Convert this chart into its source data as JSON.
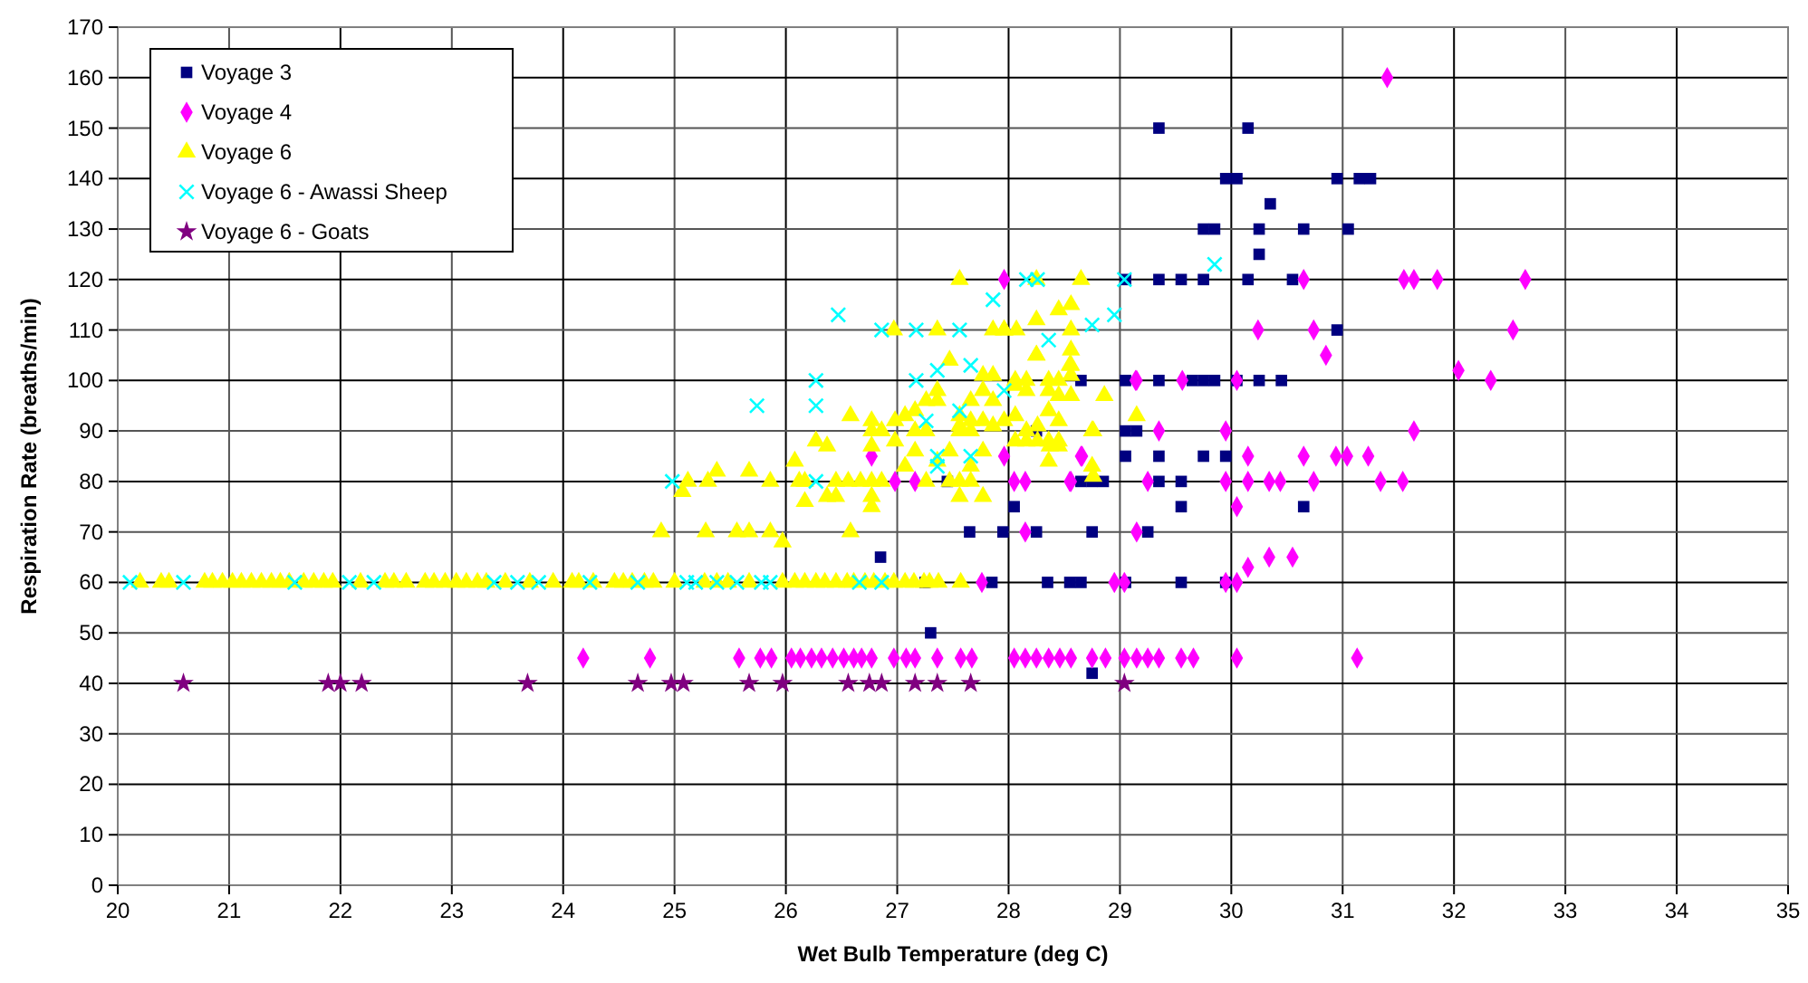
{
  "chart_data": {
    "type": "scatter",
    "xlabel": "Wet Bulb Temperature (deg C)",
    "ylabel": "Respiration Rate (breaths/min)",
    "xlim": [
      20,
      35
    ],
    "xticks": [
      20,
      21,
      22,
      23,
      24,
      25,
      26,
      27,
      28,
      29,
      30,
      31,
      32,
      33,
      34,
      35
    ],
    "ylim": [
      0,
      170
    ],
    "yticks": [
      0,
      10,
      20,
      30,
      40,
      50,
      60,
      70,
      80,
      90,
      100,
      110,
      120,
      130,
      140,
      150,
      160,
      170
    ],
    "grid": true,
    "legend": "top left",
    "series": [
      {
        "name": "Voyage 3",
        "color": "#000080",
        "marker": "square",
        "x": [
          27.3,
          28.75,
          26.85,
          27.25,
          27.85,
          28.35,
          28.55,
          28.65,
          29.05,
          29.55,
          29.95,
          27.65,
          27.95,
          28.25,
          28.75,
          29.25,
          28.05,
          29.55,
          30.65,
          27.45,
          28.65,
          28.75,
          28.85,
          29.35,
          29.55,
          29.05,
          29.35,
          29.75,
          29.95,
          28.25,
          29.05,
          29.15,
          28.65,
          29.05,
          29.35,
          29.65,
          29.75,
          29.85,
          30.05,
          30.25,
          30.45,
          30.95,
          29.05,
          29.35,
          29.55,
          29.75,
          30.15,
          30.55,
          30.25,
          29.75,
          29.85,
          30.25,
          30.65,
          31.05,
          30.35,
          29.95,
          30.05,
          30.95,
          31.15,
          31.25,
          29.35,
          30.15
        ],
        "values": [
          50,
          42,
          65,
          60,
          60,
          60,
          60,
          60,
          60,
          60,
          60,
          70,
          70,
          70,
          70,
          70,
          75,
          75,
          75,
          80,
          80,
          80,
          80,
          80,
          80,
          85,
          85,
          85,
          85,
          90,
          90,
          90,
          100,
          100,
          100,
          100,
          100,
          100,
          100,
          100,
          100,
          110,
          120,
          120,
          120,
          120,
          120,
          120,
          125,
          130,
          130,
          130,
          130,
          130,
          135,
          140,
          140,
          140,
          140,
          140,
          150,
          150
        ]
      },
      {
        "name": "Voyage 4",
        "color": "#ff00ff",
        "marker": "diamond",
        "x": [
          24.18,
          24.78,
          25.58,
          25.77,
          25.87,
          26.05,
          26.13,
          26.23,
          26.32,
          26.42,
          26.52,
          26.61,
          26.68,
          26.77,
          26.97,
          27.08,
          27.16,
          27.36,
          27.57,
          27.67,
          28.05,
          28.15,
          28.25,
          28.36,
          28.46,
          28.56,
          28.75,
          28.87,
          29.04,
          29.15,
          29.25,
          29.35,
          29.55,
          29.66,
          30.05,
          31.13,
          27.76,
          28.95,
          29.04,
          29.95,
          30.05,
          30.15,
          30.34,
          30.55,
          28.15,
          29.15,
          30.05,
          26.98,
          27.16,
          28.05,
          28.15,
          28.56,
          28.55,
          29.25,
          29.95,
          30.15,
          30.34,
          30.44,
          30.74,
          31.34,
          31.54,
          26.77,
          27.96,
          28.66,
          28.65,
          30.15,
          30.65,
          30.94,
          31.04,
          31.23,
          29.35,
          29.95,
          31.64,
          29.15,
          29.56,
          29.14,
          30.05,
          32.33,
          32.04,
          30.85,
          30.24,
          30.74,
          32.53,
          27.96,
          30.65,
          31.55,
          31.64,
          31.85,
          32.64,
          31.4
        ],
        "values": [
          45,
          45,
          45,
          45,
          45,
          45,
          45,
          45,
          45,
          45,
          45,
          45,
          45,
          45,
          45,
          45,
          45,
          45,
          45,
          45,
          45,
          45,
          45,
          45,
          45,
          45,
          45,
          45,
          45,
          45,
          45,
          45,
          45,
          45,
          45,
          45,
          60,
          60,
          60,
          60,
          60,
          63,
          65,
          65,
          70,
          70,
          75,
          80,
          80,
          80,
          80,
          80,
          80,
          80,
          80,
          80,
          80,
          80,
          80,
          80,
          80,
          85,
          85,
          85,
          85,
          85,
          85,
          85,
          85,
          85,
          90,
          90,
          90,
          100,
          100,
          100,
          100,
          100,
          102,
          105,
          110,
          110,
          110,
          120,
          120,
          120,
          120,
          120,
          120,
          160
        ]
      },
      {
        "name": "Voyage 6",
        "color": "#ffff00",
        "marker": "triangle",
        "x": [
          20.2,
          20.39,
          20.46,
          20.78,
          20.85,
          20.94,
          21.03,
          21.11,
          21.2,
          21.29,
          21.38,
          21.46,
          21.54,
          21.67,
          21.76,
          21.85,
          21.93,
          22.18,
          22.4,
          22.48,
          22.59,
          22.76,
          22.84,
          22.94,
          23.04,
          23.13,
          23.23,
          23.31,
          23.48,
          23.7,
          23.91,
          24.08,
          24.14,
          24.27,
          24.46,
          24.54,
          24.62,
          24.73,
          24.81,
          25.0,
          25.27,
          25.38,
          25.48,
          25.67,
          25.97,
          26.08,
          26.17,
          26.27,
          26.35,
          26.45,
          26.55,
          26.61,
          26.71,
          26.79,
          26.89,
          26.97,
          27.07,
          27.15,
          27.24,
          27.29,
          27.37,
          27.57,
          24.88,
          25.28,
          25.56,
          25.67,
          25.86,
          25.97,
          26.58,
          25.07,
          25.12,
          25.3,
          25.38,
          25.67,
          25.86,
          26.17,
          26.37,
          26.45,
          26.77,
          26.77,
          27.56,
          27.77,
          26.17,
          26.45,
          26.56,
          26.67,
          26.77,
          26.86,
          27.26,
          27.47,
          27.56,
          27.66,
          28.76,
          28.75,
          26.08,
          27.07,
          27.36,
          27.66,
          28.36,
          26.12,
          27.16,
          27.47,
          27.77,
          26.27,
          26.37,
          26.77,
          26.98,
          28.06,
          28.16,
          28.26,
          28.36,
          28.45,
          28.37,
          28.45,
          26.77,
          26.86,
          27.16,
          27.26,
          27.56,
          27.66,
          28.16,
          28.76,
          28.75,
          28.26,
          26.98,
          26.77,
          27.56,
          27.66,
          27.77,
          27.86,
          27.96,
          28.45,
          26.58,
          27.07,
          27.56,
          28.36,
          28.06,
          29.15,
          27.16,
          27.26,
          27.36,
          27.77,
          27.86,
          28.45,
          27.36,
          27.66,
          28.06,
          28.16,
          28.36,
          28.56,
          28.86,
          28.45,
          28.56,
          27.77,
          27.86,
          28.06,
          28.16,
          28.36,
          28.55,
          28.56,
          27.47,
          28.56,
          28.25,
          28.25,
          26.97,
          27.96,
          28.56,
          27.36,
          27.86,
          27.96,
          28.07,
          28.25,
          28.56,
          28.45,
          28.65,
          28.25,
          27.56
        ],
        "values": [
          60,
          60,
          60,
          60,
          60,
          60,
          60,
          60,
          60,
          60,
          60,
          60,
          60,
          60,
          60,
          60,
          60,
          60,
          60,
          60,
          60,
          60,
          60,
          60,
          60,
          60,
          60,
          60,
          60,
          60,
          60,
          60,
          60,
          60,
          60,
          60,
          60,
          60,
          60,
          60,
          60,
          60,
          60,
          60,
          60,
          60,
          60,
          60,
          60,
          60,
          60,
          60,
          60,
          60,
          60,
          60,
          60,
          60,
          60,
          60,
          60,
          60,
          70,
          70,
          70,
          70,
          70,
          68,
          70,
          78,
          80,
          80,
          82,
          82,
          80,
          76,
          77,
          77,
          77,
          75,
          77,
          77,
          80,
          80,
          80,
          80,
          80,
          80,
          80,
          80,
          80,
          80,
          81,
          83,
          84,
          83,
          84,
          83,
          84,
          80,
          86,
          86,
          86,
          88,
          87,
          87,
          88,
          88,
          88,
          88,
          88,
          88,
          87,
          87,
          90,
          90,
          90,
          90,
          90,
          90,
          90,
          90,
          90,
          91,
          92,
          92,
          91,
          92,
          92,
          91,
          92,
          92,
          93,
          93,
          93,
          94,
          93,
          93,
          94,
          96,
          98,
          98,
          96,
          97,
          96,
          96,
          99,
          98,
          98,
          97,
          97,
          100,
          101,
          101,
          101,
          100,
          100,
          100,
          103,
          103,
          104,
          106,
          105,
          105,
          110,
          110,
          110,
          110,
          110,
          110,
          110,
          112,
          115,
          114,
          120,
          120,
          120
        ]
      },
      {
        "name": "Voyage 6 - Awassi Sheep",
        "color": "#00ffff",
        "marker": "cross",
        "x": [
          20.11,
          20.59,
          21.59,
          22.08,
          22.3,
          23.38,
          23.59,
          23.78,
          24.24,
          24.67,
          25.11,
          25.19,
          25.38,
          25.56,
          25.78,
          25.86,
          26.66,
          26.86,
          26.27,
          24.98,
          27.36,
          27.36,
          27.66,
          27.26,
          27.56,
          26.27,
          25.74,
          27.96,
          26.27,
          27.17,
          27.36,
          27.66,
          28.36,
          26.86,
          27.17,
          27.56,
          28.75,
          26.47,
          28.95,
          27.86,
          28.16,
          28.26,
          29.04,
          29.85
        ],
        "values": [
          60,
          60,
          60,
          60,
          60,
          60,
          60,
          60,
          60,
          60,
          60,
          60,
          60,
          60,
          60,
          60,
          60,
          60,
          80,
          80,
          85,
          83,
          85,
          92,
          94,
          95,
          95,
          98,
          100,
          100,
          102,
          103,
          108,
          110,
          110,
          110,
          111,
          113,
          113,
          116,
          120,
          120,
          120,
          123
        ]
      },
      {
        "name": "Voyage 6 - Goats",
        "color": "#800080",
        "marker": "star",
        "x": [
          20.59,
          21.89,
          22.0,
          22.19,
          23.68,
          24.67,
          24.97,
          25.08,
          25.67,
          25.97,
          26.56,
          26.75,
          26.86,
          27.16,
          27.36,
          27.66,
          29.04
        ],
        "values": [
          40,
          40,
          40,
          40,
          40,
          40,
          40,
          40,
          40,
          40,
          40,
          40,
          40,
          40,
          40,
          40,
          40
        ]
      }
    ]
  }
}
